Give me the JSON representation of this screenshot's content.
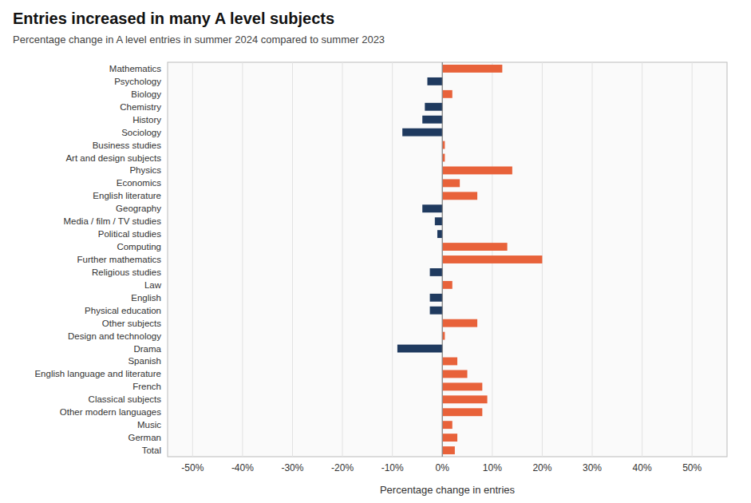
{
  "chart_data": {
    "type": "bar",
    "orientation": "horizontal",
    "title": "Entries increased in many A level subjects",
    "subtitle": "Percentage change in A level entries in summer 2024 compared to summer 2023",
    "x_label": "Percentage change in entries",
    "categories": [
      "Mathematics",
      "Psychology",
      "Biology",
      "Chemistry",
      "History",
      "Sociology",
      "Business studies",
      "Art and design subjects",
      "Physics",
      "Economics",
      "English literature",
      "Geography",
      "Media / film / TV studies",
      "Political studies",
      "Computing",
      "Further mathematics",
      "Religious studies",
      "Law",
      "English",
      "Physical education",
      "Other subjects",
      "Design and technology",
      "Drama",
      "Spanish",
      "English language and literature",
      "French",
      "Classical subjects",
      "Other modern languages",
      "Music",
      "German",
      "Total"
    ],
    "values": [
      12.0,
      -3.0,
      2.0,
      -3.5,
      -4.0,
      -8.0,
      0.5,
      0.5,
      14.0,
      3.5,
      7.0,
      -4.0,
      -1.5,
      -1.0,
      13.0,
      20.0,
      -2.5,
      2.0,
      -2.5,
      -2.5,
      7.0,
      0.5,
      -9.0,
      3.0,
      5.0,
      8.0,
      9.0,
      8.0,
      2.0,
      3.0,
      2.5
    ],
    "colors": [
      "#E8623A",
      "#1F3A5F",
      "#E8623A",
      "#1F3A5F",
      "#1F3A5F",
      "#1F3A5F",
      "#E8623A",
      "#E8623A",
      "#E8623A",
      "#E8623A",
      "#E8623A",
      "#1F3A5F",
      "#1F3A5F",
      "#1F3A5F",
      "#E8623A",
      "#E8623A",
      "#1F3A5F",
      "#E8623A",
      "#1F3A5F",
      "#1F3A5F",
      "#E8623A",
      "#E8623A",
      "#1F3A5F",
      "#E8623A",
      "#E8623A",
      "#E8623A",
      "#E8623A",
      "#E8623A",
      "#E8623A",
      "#E8623A",
      "#E8623A"
    ],
    "xlim": [
      -55,
      57
    ],
    "xticks": [
      {
        "value": -50,
        "label": "-50%"
      },
      {
        "value": -40,
        "label": "-40%"
      },
      {
        "value": -30,
        "label": "-30%"
      },
      {
        "value": -20,
        "label": "-20%"
      },
      {
        "value": -10,
        "label": "-10%"
      },
      {
        "value": 0,
        "label": "0%"
      },
      {
        "value": 10,
        "label": "10%"
      },
      {
        "value": 20,
        "label": "20%"
      },
      {
        "value": 30,
        "label": "30%"
      },
      {
        "value": 40,
        "label": "40%"
      },
      {
        "value": 50,
        "label": "50%"
      }
    ],
    "grid": true
  }
}
